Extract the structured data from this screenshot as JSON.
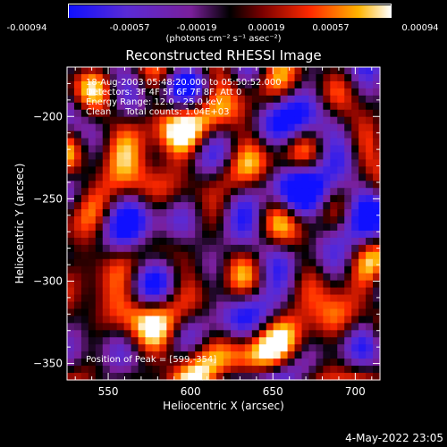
{
  "colorbar": {
    "tick_labels": [
      "-0.00094",
      "-0.00057",
      "-0.00019",
      "0.00019",
      "0.00057",
      "0.00094"
    ],
    "units_label": "(photons cm⁻² s⁻¹ asec⁻²)",
    "range": [
      -0.00094,
      0.00094
    ]
  },
  "info": {
    "time_range": "18-Aug-2003 05:48:20.000 to 05:50:52.000",
    "detectors": "Detectors: 3F 4F 5F 6F 7F 8F, Att 0",
    "energy_range": "Energy Range: 12.0 - 25.0 keV",
    "clean_counts": "Clean     Total counts: 1.04E+03",
    "peak_position": "Position of Peak = [599,-354]"
  },
  "timestamp": "4-May-2022 23:05",
  "chart_data": {
    "type": "heatmap",
    "title": "Reconstructed RHESSI Image",
    "xlabel": "Heliocentric X (arcsec)",
    "ylabel": "Heliocentric Y (arcsec)",
    "xlim": [
      525,
      715
    ],
    "ylim": [
      -360,
      -170
    ],
    "x_ticks": [
      550,
      600,
      650,
      700
    ],
    "y_ticks": [
      -200,
      -250,
      -300,
      -350
    ],
    "x_tick_labels": [
      "550",
      "600",
      "650",
      "700"
    ],
    "y_tick_labels": [
      "−200",
      "−250",
      "−300",
      "−350"
    ],
    "colormap": "rainbow-to-hot",
    "peak": [
      599,
      -354
    ],
    "grid": false
  }
}
